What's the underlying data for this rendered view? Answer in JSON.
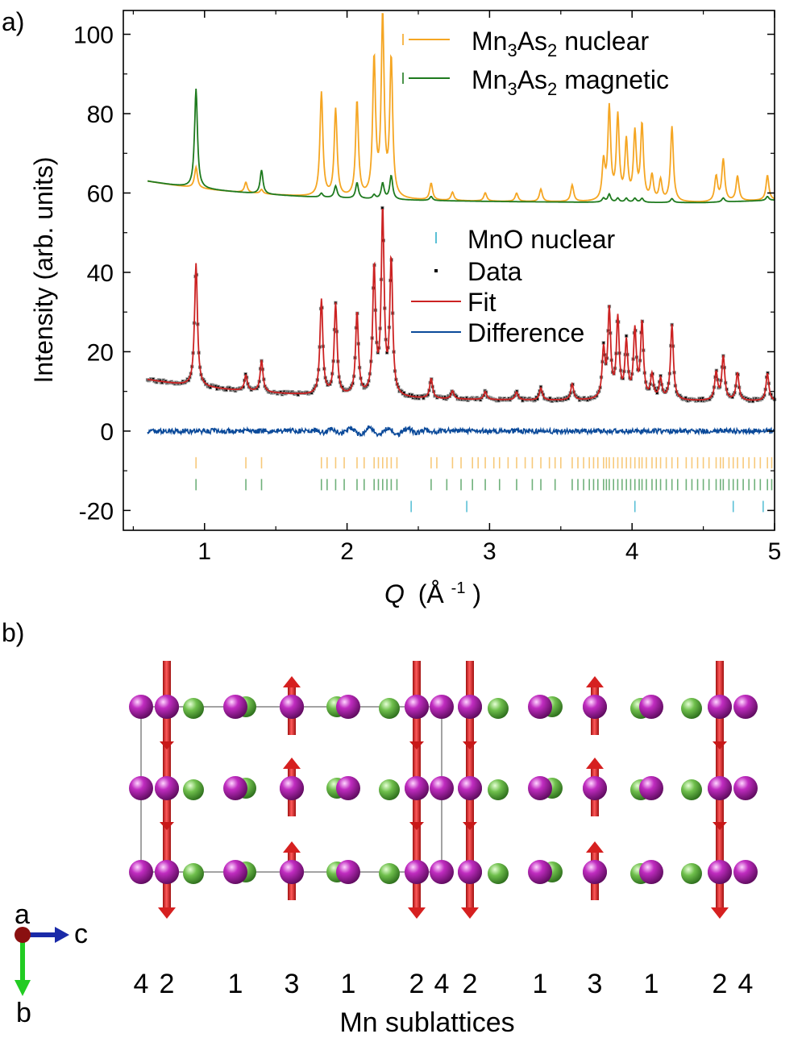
{
  "panel_a": {
    "label": "a)"
  },
  "panel_b": {
    "label": "b)"
  },
  "chart_data": {
    "type": "line",
    "xlabel_main": "Q",
    "xlabel_unit": "(Å",
    "xlabel_sup": "-1",
    "xlabel_close": ")",
    "ylabel": "Intensity (arb. units)",
    "xlim": [
      0.43,
      5.0
    ],
    "ylim": [
      -25,
      106
    ],
    "x_ticks": [
      1,
      2,
      3,
      4,
      5
    ],
    "x_tick_labels": [
      "1",
      "2",
      "3",
      "4",
      "5"
    ],
    "y_ticks": [
      -20,
      0,
      20,
      40,
      60,
      80,
      100
    ],
    "y_tick_labels": [
      "-20",
      "0",
      "20",
      "40",
      "60",
      "80",
      "100"
    ],
    "grid": false,
    "legend": [
      {
        "prefix": "Mn",
        "sub1": "3",
        "mid": "As",
        "sub2": "2",
        "suffix": " nuclear",
        "color": "#f5a623",
        "marker": "line+tick"
      },
      {
        "prefix": "Mn",
        "sub1": "3",
        "mid": "As",
        "sub2": "2",
        "suffix": " magnetic",
        "color": "#1e7a1e",
        "marker": "line+tick"
      },
      {
        "text": "MnO nuclear",
        "color": "#5bc0d6",
        "marker": "tick"
      },
      {
        "text": "Data",
        "color": "#000000",
        "marker": "square"
      },
      {
        "text": "Fit",
        "color": "#cc2222",
        "marker": "line"
      },
      {
        "text": "Difference",
        "color": "#0b4a9a",
        "marker": "line"
      }
    ],
    "peaks": [
      {
        "q": 0.94,
        "data": 31,
        "nuclear": 5,
        "magnetic": 25
      },
      {
        "q": 1.29,
        "data": 4,
        "nuclear": 2.5,
        "magnetic": 0
      },
      {
        "q": 1.4,
        "data": 8,
        "nuclear": 1,
        "magnetic": 6
      },
      {
        "q": 1.82,
        "data": 24,
        "nuclear": 25,
        "magnetic": 1
      },
      {
        "q": 1.92,
        "data": 23,
        "nuclear": 21,
        "magnetic": 3
      },
      {
        "q": 2.07,
        "data": 21,
        "nuclear": 23,
        "magnetic": 4
      },
      {
        "q": 2.19,
        "data": 32,
        "nuclear": 33,
        "magnetic": 1
      },
      {
        "q": 2.25,
        "data": 46,
        "nuclear": 43,
        "magnetic": 4
      },
      {
        "q": 2.31,
        "data": 34,
        "nuclear": 33,
        "magnetic": 6
      },
      {
        "q": 2.59,
        "data": 5,
        "nuclear": 4,
        "magnetic": 1
      },
      {
        "q": 2.74,
        "data": 2,
        "nuclear": 2,
        "magnetic": 0
      },
      {
        "q": 2.97,
        "data": 2,
        "nuclear": 2,
        "magnetic": 0
      },
      {
        "q": 3.19,
        "data": 2,
        "nuclear": 2,
        "magnetic": 0
      },
      {
        "q": 3.36,
        "data": 3,
        "nuclear": 3,
        "magnetic": 0
      },
      {
        "q": 3.58,
        "data": 4,
        "nuclear": 4,
        "magnetic": 0
      },
      {
        "q": 3.8,
        "data": 12,
        "nuclear": 9,
        "magnetic": 1
      },
      {
        "q": 3.84,
        "data": 22,
        "nuclear": 22,
        "magnetic": 2
      },
      {
        "q": 3.9,
        "data": 20,
        "nuclear": 20,
        "magnetic": 1
      },
      {
        "q": 3.96,
        "data": 14,
        "nuclear": 14,
        "magnetic": 1
      },
      {
        "q": 4.02,
        "data": 17,
        "nuclear": 16,
        "magnetic": 1
      },
      {
        "q": 4.07,
        "data": 19,
        "nuclear": 18,
        "magnetic": 1
      },
      {
        "q": 4.14,
        "data": 6,
        "nuclear": 6,
        "magnetic": 0
      },
      {
        "q": 4.2,
        "data": 5,
        "nuclear": 5,
        "magnetic": 0
      },
      {
        "q": 4.28,
        "data": 19,
        "nuclear": 18,
        "magnetic": 1
      },
      {
        "q": 4.59,
        "data": 7,
        "nuclear": 6,
        "magnetic": 0
      },
      {
        "q": 4.64,
        "data": 11,
        "nuclear": 10,
        "magnetic": 1
      },
      {
        "q": 4.74,
        "data": 7,
        "nuclear": 6,
        "magnetic": 0
      },
      {
        "q": 4.95,
        "data": 7,
        "nuclear": 6,
        "magnetic": 1
      }
    ],
    "nuclear_ticks": [
      0.94,
      1.29,
      1.4,
      1.82,
      1.86,
      1.92,
      1.98,
      2.07,
      2.12,
      2.19,
      2.22,
      2.25,
      2.28,
      2.31,
      2.35,
      2.59,
      2.63,
      2.74,
      2.8,
      2.88,
      2.92,
      2.97,
      3.03,
      3.07,
      3.13,
      3.19,
      3.25,
      3.3,
      3.36,
      3.42,
      3.46,
      3.5,
      3.58,
      3.62,
      3.66,
      3.7,
      3.73,
      3.76,
      3.8,
      3.82,
      3.84,
      3.87,
      3.9,
      3.93,
      3.96,
      3.99,
      4.02,
      4.05,
      4.07,
      4.1,
      4.14,
      4.17,
      4.2,
      4.24,
      4.28,
      4.32,
      4.38,
      4.42,
      4.46,
      4.5,
      4.54,
      4.59,
      4.62,
      4.64,
      4.68,
      4.71,
      4.74,
      4.78,
      4.82,
      4.86,
      4.9,
      4.95,
      4.98
    ],
    "magnetic_ticks": [
      0.94,
      1.29,
      1.4,
      1.82,
      1.86,
      1.92,
      1.98,
      2.07,
      2.12,
      2.19,
      2.22,
      2.25,
      2.28,
      2.31,
      2.35,
      2.59,
      2.7,
      2.8,
      2.88,
      2.97,
      3.07,
      3.19,
      3.3,
      3.36,
      3.46,
      3.58,
      3.62,
      3.66,
      3.7,
      3.73,
      3.76,
      3.8,
      3.82,
      3.84,
      3.87,
      3.9,
      3.93,
      3.96,
      3.99,
      4.02,
      4.05,
      4.07,
      4.1,
      4.14,
      4.17,
      4.2,
      4.24,
      4.28,
      4.32,
      4.38,
      4.42,
      4.46,
      4.5,
      4.54,
      4.59,
      4.62,
      4.64,
      4.68,
      4.71,
      4.74,
      4.78,
      4.82,
      4.86,
      4.9,
      4.95,
      4.98
    ],
    "mno_ticks": [
      2.45,
      2.84,
      4.02,
      4.71,
      4.92
    ],
    "nuclear_tick_y": -8,
    "magnetic_tick_y": -13.5,
    "mno_tick_y": -19
  },
  "structure": {
    "axes": {
      "a": "a",
      "b": "b",
      "c": "c"
    },
    "sublattice_numbers": [
      "4",
      "2",
      "1",
      "3",
      "1",
      "2",
      "4",
      "2",
      "1",
      "3",
      "1",
      "2",
      "4"
    ],
    "sublattice_caption": "Mn sublattices",
    "colors": {
      "mn": "#b01cb0",
      "as": "#5aad3c",
      "spin": "#dd2222"
    }
  }
}
